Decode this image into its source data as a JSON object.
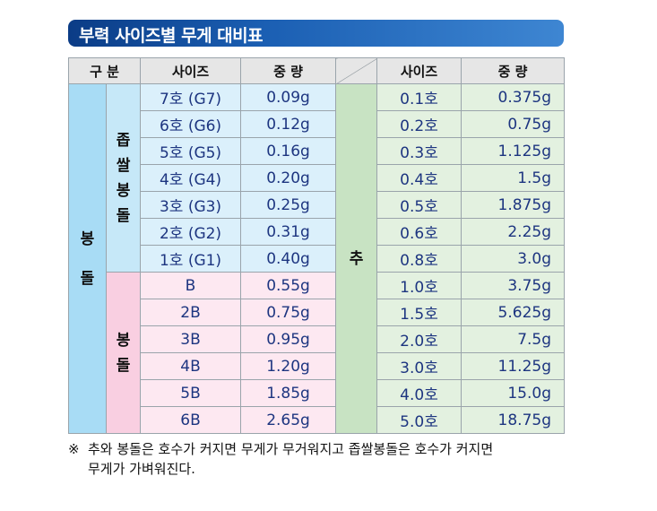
{
  "title": "부력 사이즈별 무게 대비표",
  "headers": {
    "category": "구 분",
    "size": "사이즈",
    "weight": "중 량",
    "size2": "사이즈",
    "weight2": "중 량"
  },
  "groups": {
    "outer": [
      "봉",
      "돌"
    ],
    "small": [
      "좁",
      "쌀",
      "봉",
      "돌"
    ],
    "big": [
      "봉",
      "돌"
    ],
    "sinker": "추"
  },
  "left_rows": [
    {
      "size": "7호 (G7)",
      "weight": "0.09g"
    },
    {
      "size": "6호 (G6)",
      "weight": "0.12g"
    },
    {
      "size": "5호 (G5)",
      "weight": "0.16g"
    },
    {
      "size": "4호 (G4)",
      "weight": "0.20g"
    },
    {
      "size": "3호 (G3)",
      "weight": "0.25g"
    },
    {
      "size": "2호 (G2)",
      "weight": "0.31g"
    },
    {
      "size": "1호 (G1)",
      "weight": "0.40g"
    },
    {
      "size": "B",
      "weight": "0.55g"
    },
    {
      "size": "2B",
      "weight": "0.75g"
    },
    {
      "size": "3B",
      "weight": "0.95g"
    },
    {
      "size": "4B",
      "weight": "1.20g"
    },
    {
      "size": "5B",
      "weight": "1.85g"
    },
    {
      "size": "6B",
      "weight": "2.65g"
    }
  ],
  "right_rows": [
    {
      "size": "0.1호",
      "weight": "0.375g"
    },
    {
      "size": "0.2호",
      "weight": "0.75g"
    },
    {
      "size": "0.3호",
      "weight": "1.125g"
    },
    {
      "size": "0.4호",
      "weight": "1.5g"
    },
    {
      "size": "0.5호",
      "weight": "1.875g"
    },
    {
      "size": "0.6호",
      "weight": "2.25g"
    },
    {
      "size": "0.8호",
      "weight": "3.0g"
    },
    {
      "size": "1.0호",
      "weight": "3.75g"
    },
    {
      "size": "1.5호",
      "weight": "5.625g"
    },
    {
      "size": "2.0호",
      "weight": "7.5g"
    },
    {
      "size": "3.0호",
      "weight": "11.25g"
    },
    {
      "size": "4.0호",
      "weight": "15.0g"
    },
    {
      "size": "5.0호",
      "weight": "18.75g"
    }
  ],
  "note": {
    "mark": "※",
    "line1": "추와 봉돌은 호수가 커지면 무게가 무거워지고 좁쌀봉돌은 호수가 커지면",
    "line2": "무게가 가벼워진다."
  },
  "colors": {
    "title_bg": "#1b5fb3",
    "blue": "#dbf0fb",
    "pink": "#fde8f1",
    "green": "#e3f1e0",
    "text": "#1d3580"
  }
}
